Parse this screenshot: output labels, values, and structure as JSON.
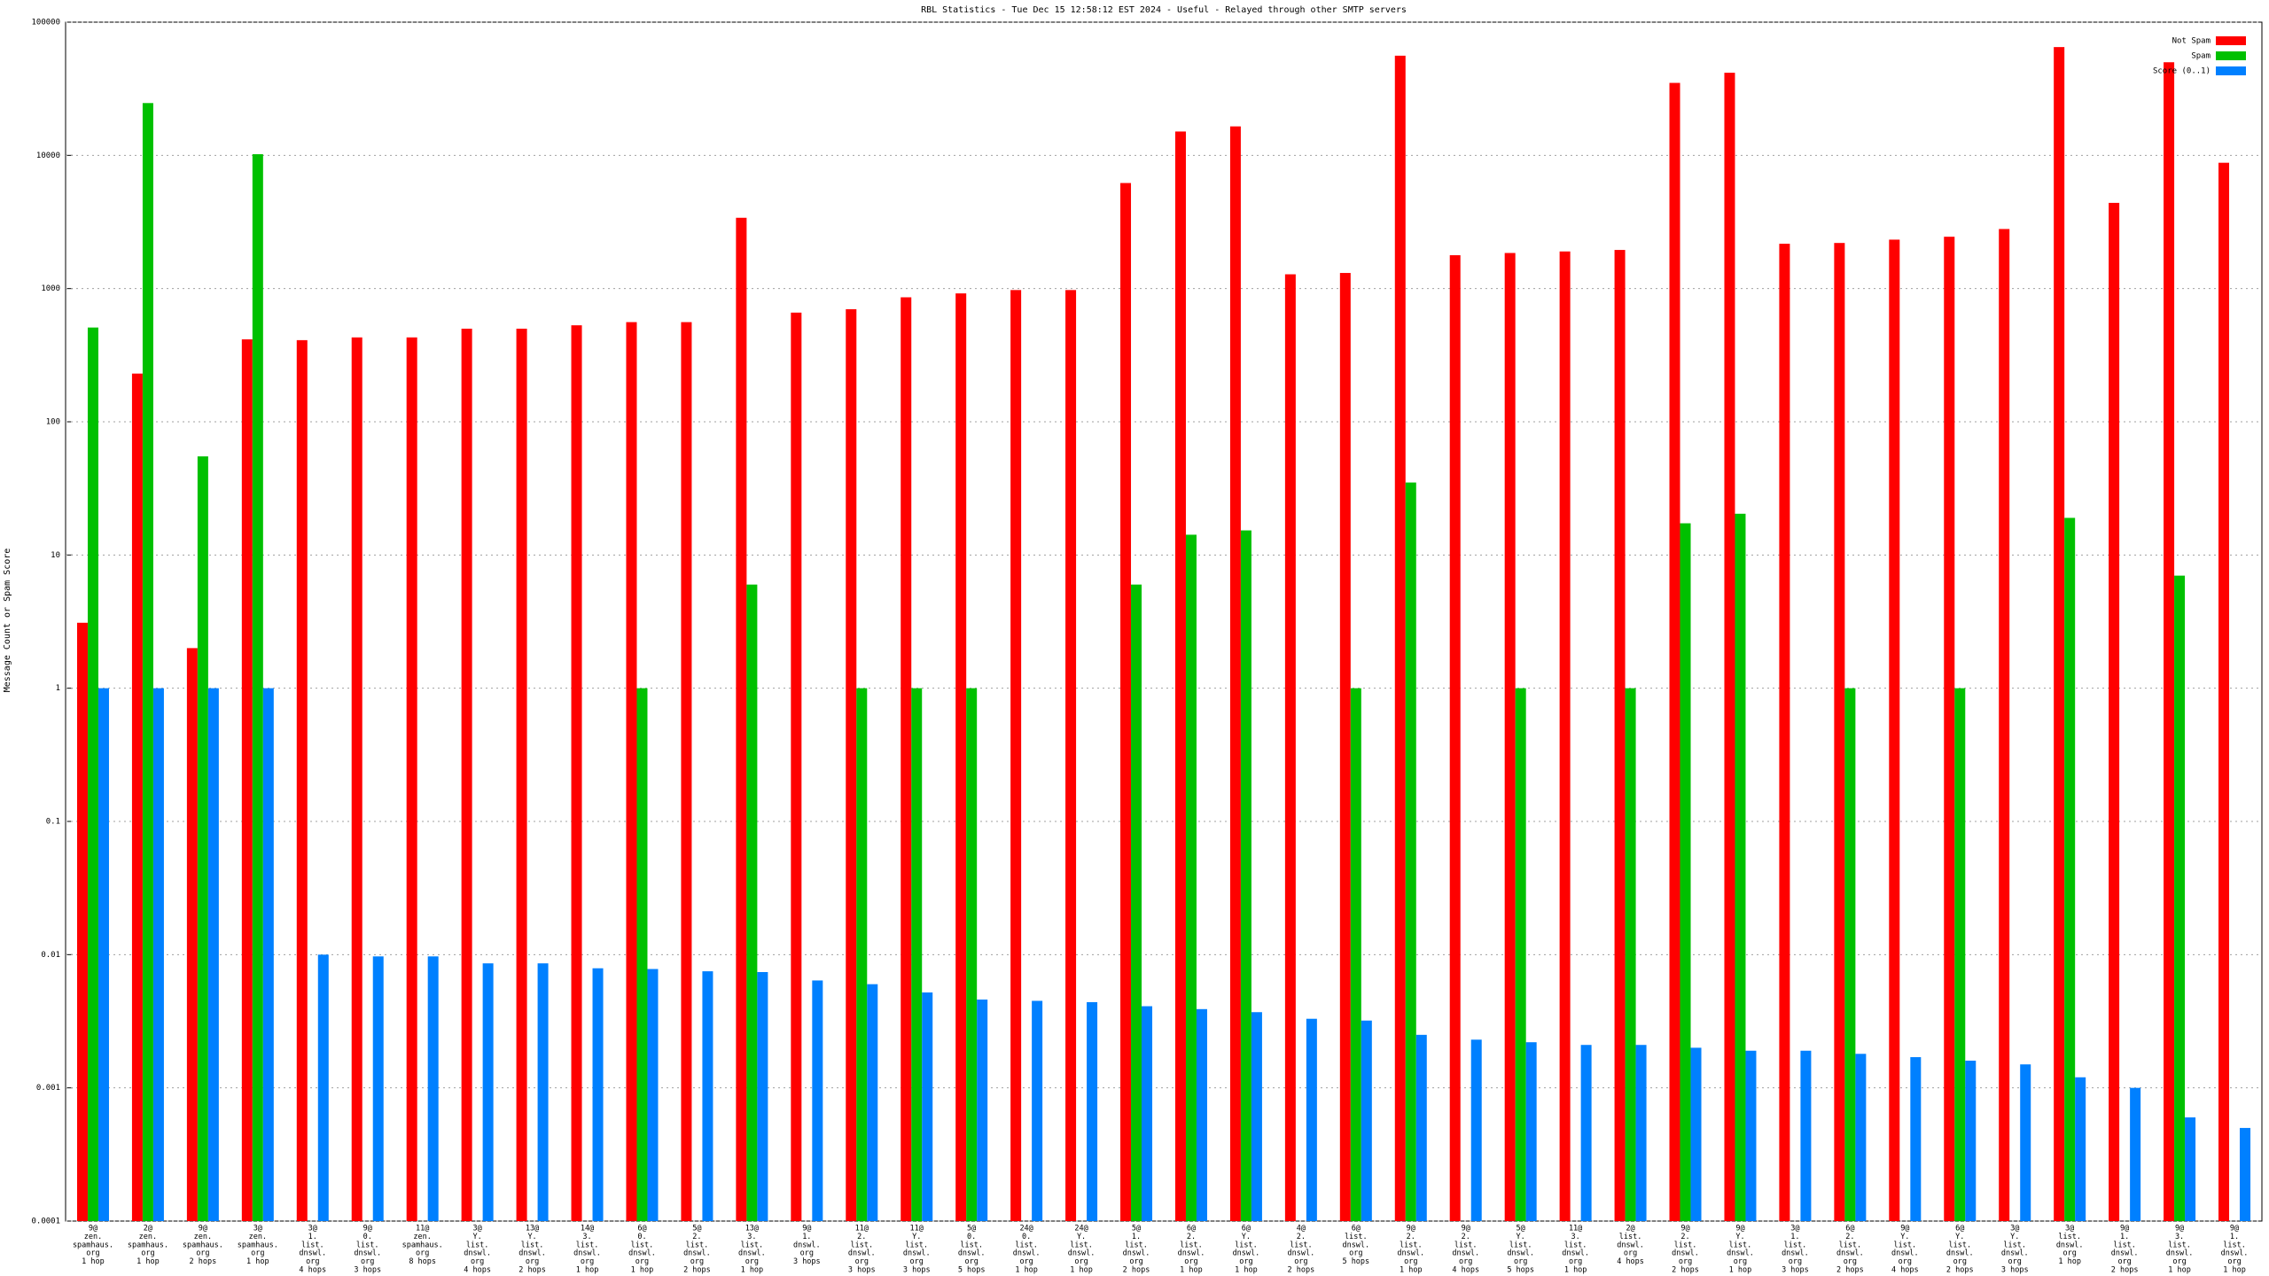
{
  "chart_data": {
    "type": "bar",
    "title": "RBL Statistics - Tue Dec 15 12:58:12 EST 2024 - Useful - Relayed through other SMTP servers",
    "y_label": "Message Count or Spam Score",
    "log_scale": true,
    "grid": true,
    "legend": "top-right",
    "ylim": [
      0.0001,
      100000
    ],
    "yticks": [
      0.0001,
      0.001,
      0.01,
      0.1,
      1,
      10,
      100,
      1000,
      10000,
      100000
    ],
    "categories": [
      [
        "9@",
        "zen.",
        "spamhaus.",
        "org",
        "1 hop"
      ],
      [
        "2@",
        "zen.",
        "spamhaus.",
        "org",
        "1 hop"
      ],
      [
        "9@",
        "zen.",
        "spamhaus.",
        "org",
        "2 hops"
      ],
      [
        "3@",
        "zen.",
        "spamhaus.",
        "org",
        "1 hop"
      ],
      [
        "3@",
        "1.",
        "list.",
        "dnswl.",
        "org",
        "4 hops"
      ],
      [
        "9@",
        "0.",
        "list.",
        "dnswl.",
        "org",
        "3 hops"
      ],
      [
        "11@",
        "zen.",
        "spamhaus.",
        "org",
        "8 hops"
      ],
      [
        "3@",
        "Y.",
        "list.",
        "dnswl.",
        "org",
        "4 hops"
      ],
      [
        "13@",
        "Y.",
        "list.",
        "dnswl.",
        "org",
        "2 hops"
      ],
      [
        "14@",
        "3.",
        "list.",
        "dnswl.",
        "org",
        "1 hop"
      ],
      [
        "6@",
        "0.",
        "list.",
        "dnswl.",
        "org",
        "1 hop"
      ],
      [
        "5@",
        "2.",
        "list.",
        "dnswl.",
        "org",
        "2 hops"
      ],
      [
        "13@",
        "3.",
        "list.",
        "dnswl.",
        "org",
        "1 hop"
      ],
      [
        "9@",
        "1.",
        "dnswl.",
        "org",
        "3 hops"
      ],
      [
        "11@",
        "2.",
        "list.",
        "dnswl.",
        "org",
        "3 hops"
      ],
      [
        "11@",
        "Y.",
        "list.",
        "dnswl.",
        "org",
        "3 hops"
      ],
      [
        "5@",
        "0.",
        "list.",
        "dnswl.",
        "org",
        "5 hops"
      ],
      [
        "24@",
        "0.",
        "list.",
        "dnswl.",
        "org",
        "1 hop"
      ],
      [
        "24@",
        "Y.",
        "list.",
        "dnswl.",
        "org",
        "1 hop"
      ],
      [
        "5@",
        "1.",
        "list.",
        "dnswl.",
        "org",
        "2 hops"
      ],
      [
        "6@",
        "2.",
        "list.",
        "dnswl.",
        "org",
        "1 hop"
      ],
      [
        "6@",
        "Y.",
        "list.",
        "dnswl.",
        "org",
        "1 hop"
      ],
      [
        "4@",
        "2.",
        "list.",
        "dnswl.",
        "org",
        "2 hops"
      ],
      [
        "6@",
        "list.",
        "dnswl.",
        "org",
        "5 hops"
      ],
      [
        "9@",
        "2.",
        "list.",
        "dnswl.",
        "org",
        "1 hop"
      ],
      [
        "9@",
        "2.",
        "list.",
        "dnswl.",
        "org",
        "4 hops"
      ],
      [
        "5@",
        "Y.",
        "list.",
        "dnswl.",
        "org",
        "5 hops"
      ],
      [
        "11@",
        "3.",
        "list.",
        "dnswl.",
        "org",
        "1 hop"
      ],
      [
        "2@",
        "list.",
        "dnswl.",
        "org",
        "4 hops"
      ],
      [
        "9@",
        "2.",
        "list.",
        "dnswl.",
        "org",
        "2 hops"
      ],
      [
        "9@",
        "Y.",
        "list.",
        "dnswl.",
        "org",
        "1 hop"
      ],
      [
        "3@",
        "1.",
        "list.",
        "dnswl.",
        "org",
        "3 hops"
      ],
      [
        "6@",
        "2.",
        "list.",
        "dnswl.",
        "org",
        "2 hops"
      ],
      [
        "9@",
        "Y.",
        "list.",
        "dnswl.",
        "org",
        "4 hops"
      ],
      [
        "6@",
        "Y.",
        "list.",
        "dnswl.",
        "org",
        "2 hops"
      ],
      [
        "3@",
        "Y.",
        "list.",
        "dnswl.",
        "org",
        "3 hops"
      ],
      [
        "3@",
        "list.",
        "dnswl.",
        "org",
        "1 hop"
      ],
      [
        "9@",
        "1.",
        "list.",
        "dnswl.",
        "org",
        "2 hops"
      ],
      [
        "9@",
        "3.",
        "list.",
        "dnswl.",
        "org",
        "1 hop"
      ],
      [
        "9@",
        "1.",
        "list.",
        "dnswl.",
        "org",
        "1 hop"
      ]
    ],
    "series": [
      {
        "name": "Not Spam",
        "color": "#ff0000",
        "values": [
          3.1,
          230,
          2,
          416,
          410,
          430,
          430,
          500,
          500,
          530,
          560,
          560,
          3400,
          660,
          700,
          860,
          920,
          975,
          975,
          6200,
          15100,
          16500,
          1280,
          1310,
          56000,
          1780,
          1850,
          1900,
          1950,
          35000,
          41700,
          2170,
          2200,
          2330,
          2450,
          2800,
          65000,
          4400,
          50000,
          8800
        ]
      },
      {
        "name": "Spam",
        "color": "#00c000",
        "values": [
          510,
          24700,
          55,
          10200,
          null,
          null,
          null,
          null,
          null,
          null,
          1,
          null,
          6,
          null,
          1,
          1,
          1,
          null,
          null,
          6,
          14.2,
          15.3,
          null,
          1,
          35,
          null,
          1,
          null,
          1,
          17.3,
          20.4,
          null,
          1,
          null,
          1,
          null,
          19,
          null,
          7,
          null
        ]
      },
      {
        "name": "Score (0..1)",
        "color": "#0080ff",
        "values": [
          1,
          1,
          1,
          1,
          0.01,
          0.0097,
          0.0097,
          0.0086,
          0.0086,
          0.0079,
          0.0078,
          0.0075,
          0.0074,
          0.0064,
          0.006,
          0.0052,
          0.0046,
          0.0045,
          0.0044,
          0.0041,
          0.0039,
          0.0037,
          0.0033,
          0.0032,
          0.0025,
          0.0023,
          0.0022,
          0.0021,
          0.0021,
          0.002,
          0.0019,
          0.0019,
          0.0018,
          0.0017,
          0.0016,
          0.0015,
          0.0012,
          0.001,
          0.0006,
          0.0005
        ]
      }
    ]
  }
}
